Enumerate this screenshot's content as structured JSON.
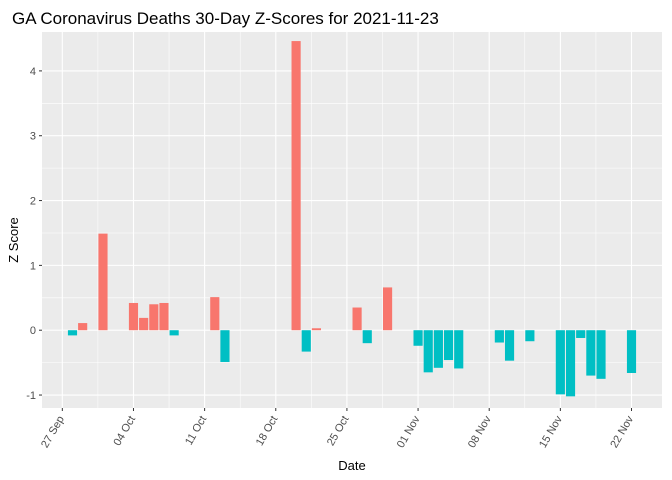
{
  "chart_data": {
    "type": "bar",
    "title": "GA Coronavirus Deaths 30-Day Z-Scores for 2021-11-23",
    "xlabel": "Date",
    "ylabel": "Z Score",
    "xlim": [
      "2021-09-25",
      "2021-11-25"
    ],
    "ylim": [
      -1.2,
      4.6
    ],
    "y_ticks": [
      -1,
      0,
      1,
      2,
      3,
      4
    ],
    "x_ticks": [
      {
        "date": "2021-09-27",
        "label": "27 Sep"
      },
      {
        "date": "2021-10-04",
        "label": "04 Oct"
      },
      {
        "date": "2021-10-11",
        "label": "11 Oct"
      },
      {
        "date": "2021-10-18",
        "label": "18 Oct"
      },
      {
        "date": "2021-10-25",
        "label": "25 Oct"
      },
      {
        "date": "2021-11-01",
        "label": "01 Nov"
      },
      {
        "date": "2021-11-08",
        "label": "08 Nov"
      },
      {
        "date": "2021-11-15",
        "label": "15 Nov"
      },
      {
        "date": "2021-11-22",
        "label": "22 Nov"
      }
    ],
    "grid": true,
    "legend": "none",
    "colors": {
      "positive": "#F8766D",
      "negative": "#00BFC4",
      "panel": "#EBEBEB",
      "grid": "#FFFFFF"
    },
    "points": [
      {
        "date": "2021-09-28",
        "value": -0.08
      },
      {
        "date": "2021-09-29",
        "value": 0.11
      },
      {
        "date": "2021-10-01",
        "value": 1.49
      },
      {
        "date": "2021-10-04",
        "value": 0.42
      },
      {
        "date": "2021-10-05",
        "value": 0.19
      },
      {
        "date": "2021-10-06",
        "value": 0.4
      },
      {
        "date": "2021-10-07",
        "value": 0.42
      },
      {
        "date": "2021-10-08",
        "value": -0.08
      },
      {
        "date": "2021-10-12",
        "value": 0.51
      },
      {
        "date": "2021-10-13",
        "value": -0.49
      },
      {
        "date": "2021-10-20",
        "value": 4.46
      },
      {
        "date": "2021-10-21",
        "value": -0.33
      },
      {
        "date": "2021-10-22",
        "value": 0.03
      },
      {
        "date": "2021-10-26",
        "value": 0.35
      },
      {
        "date": "2021-10-27",
        "value": -0.2
      },
      {
        "date": "2021-10-29",
        "value": 0.66
      },
      {
        "date": "2021-11-01",
        "value": -0.24
      },
      {
        "date": "2021-11-02",
        "value": -0.65
      },
      {
        "date": "2021-11-03",
        "value": -0.58
      },
      {
        "date": "2021-11-04",
        "value": -0.46
      },
      {
        "date": "2021-11-05",
        "value": -0.59
      },
      {
        "date": "2021-11-09",
        "value": -0.19
      },
      {
        "date": "2021-11-10",
        "value": -0.47
      },
      {
        "date": "2021-11-12",
        "value": -0.17
      },
      {
        "date": "2021-11-15",
        "value": -0.99
      },
      {
        "date": "2021-11-16",
        "value": -1.02
      },
      {
        "date": "2021-11-17",
        "value": -0.12
      },
      {
        "date": "2021-11-18",
        "value": -0.7
      },
      {
        "date": "2021-11-19",
        "value": -0.75
      },
      {
        "date": "2021-11-22",
        "value": -0.66
      }
    ]
  }
}
